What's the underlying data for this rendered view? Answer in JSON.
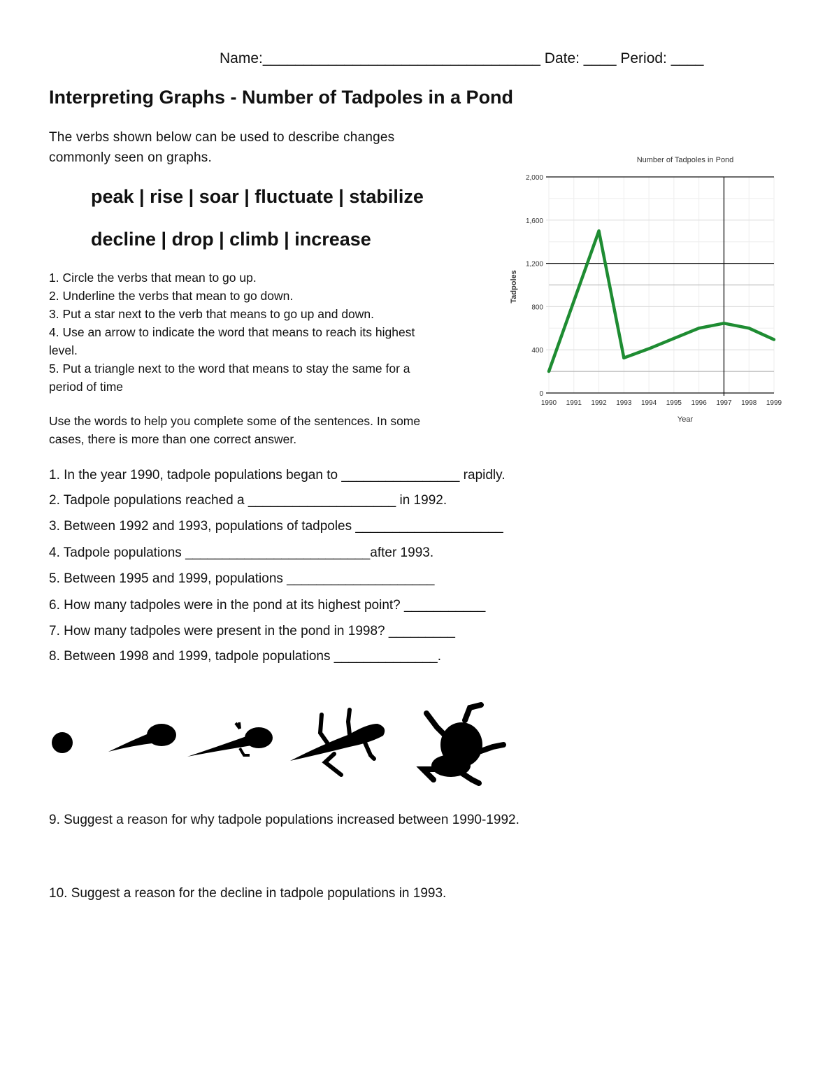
{
  "header": {
    "name_line": "Name:__________________________________ Date: ____ Period: ____"
  },
  "title": "Interpreting Graphs - Number of Tadpoles in a Pond",
  "intro": [
    "The verbs shown below can be used to describe changes",
    "commonly seen on graphs."
  ],
  "verbs": [
    "peak | rise | soar | fluctuate | stabilize",
    "decline | drop | climb | increase"
  ],
  "instructions": [
    "1.  Circle the verbs that mean to go up.",
    "2.  Underline the verbs that mean to go down.",
    "3.  Put a star next to the verb that means to go up and down.",
    "4.  Use an arrow to indicate the word that means to reach its highest",
    "level.",
    "5.  Put a triangle next to the word that means to stay the same for a",
    "period of time"
  ],
  "use_words": [
    "Use the words to help you complete some of the sentences. In some",
    "cases, there is more than one correct answer."
  ],
  "sentences": [
    "1.  In the year 1990, tadpole populations began to ________________  rapidly.",
    "2.  Tadpole populations reached a ____________________ in 1992.",
    "3.  Between 1992 and 1993, populations of tadpoles ____________________",
    "4.  Tadpole populations _________________________after 1993.",
    "5.  Between 1995 and 1999, populations ____________________",
    "6.  How many tadpoles were in the pond at its highest point? ___________",
    "7.  How many tadpoles were present in the pond in 1998?  _________",
    "8.  Between 1998 and 1999, tadpole populations ______________."
  ],
  "questions": [
    "9. Suggest a reason for why tadpole populations increased between 1990-1992.",
    "10. Suggest a reason for the decline in tadpole populations in 1993."
  ],
  "lifecycle_icons": [
    "egg-icon",
    "tadpole-icon",
    "tadpole-with-legs-icon",
    "froglet-icon",
    "frog-icon"
  ],
  "chart_data": {
    "type": "line",
    "title": "Number of Tadpoles in Pond",
    "xlabel": "Year",
    "ylabel": "Tadpoles",
    "x": [
      "1990",
      "1991",
      "1992",
      "1993",
      "1994",
      "1995",
      "1996",
      "1997",
      "1998",
      "1999"
    ],
    "values": [
      200,
      850,
      1500,
      325,
      410,
      505,
      600,
      645,
      600,
      495
    ],
    "ylim": [
      0,
      2000
    ],
    "yticks": [
      "0",
      "400",
      "800",
      "1,200",
      "1,600",
      "2,000"
    ],
    "grid": true,
    "line_color": "#1e8c32"
  }
}
